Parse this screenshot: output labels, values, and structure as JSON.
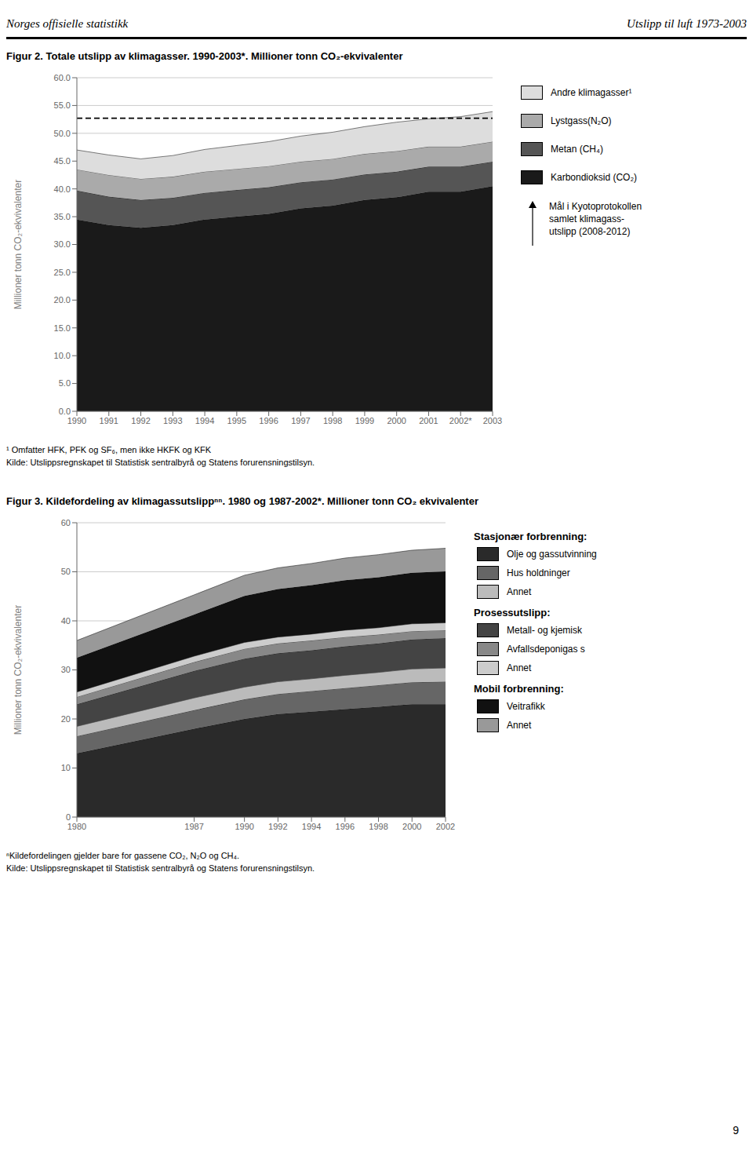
{
  "header": [
    "Norges offisielle statistikk",
    "Utslipp til luft 1973-2003"
  ],
  "page_number": "9",
  "chart_data": [
    {
      "type": "area",
      "stacked": true,
      "title": "Figur 2. Totale utslipp av klimagasser. 1990-2003*. Millioner tonn CO₂-ekvivalenter",
      "y_label": "Millioner tonn CO₂-ekvivalenter",
      "x": [
        1990,
        1991,
        1992,
        1993,
        1994,
        1995,
        1996,
        1997,
        1998,
        1999,
        2000,
        2001,
        2002,
        2003
      ],
      "series": [
        {
          "name": "Karbondioksid (CO₂)",
          "color": "#1a1a1a",
          "values": [
            34.5,
            33.5,
            33.0,
            33.5,
            34.5,
            35.0,
            35.5,
            36.5,
            37.0,
            38.0,
            38.5,
            39.5,
            39.5,
            40.5
          ]
        },
        {
          "name": "Metan (CH₄)",
          "color": "#555555",
          "values": [
            5.2,
            5.1,
            5.0,
            4.9,
            4.8,
            4.8,
            4.8,
            4.7,
            4.7,
            4.6,
            4.6,
            4.5,
            4.5,
            4.4
          ]
        },
        {
          "name": "Lystgass(N₂O)",
          "color": "#aaaaaa",
          "values": [
            3.8,
            3.9,
            3.8,
            3.8,
            3.8,
            3.8,
            3.8,
            3.7,
            3.7,
            3.7,
            3.7,
            3.6,
            3.6,
            3.6
          ]
        },
        {
          "name": "Andre klimagasser¹",
          "color": "#dddddd",
          "values": [
            3.5,
            3.6,
            3.6,
            3.8,
            4.0,
            4.2,
            4.4,
            4.6,
            4.8,
            4.9,
            5.2,
            5.0,
            5.4,
            5.4
          ]
        }
      ],
      "xlim": [
        1990,
        2003
      ],
      "xticks": [
        1990,
        1991,
        1992,
        1993,
        1994,
        1995,
        1996,
        1997,
        1998,
        1999,
        2000,
        2001,
        {
          "value": 2002,
          "label": "2002*"
        },
        2003
      ],
      "ylim": [
        0,
        60
      ],
      "yticks": [
        {
          "value": 0,
          "label": "0.0"
        },
        {
          "value": 5,
          "label": "5.0"
        },
        {
          "value": 10,
          "label": "10.0"
        },
        {
          "value": 15,
          "label": "15.0"
        },
        {
          "value": 20,
          "label": "20.0"
        },
        {
          "value": 25,
          "label": "25.0"
        },
        {
          "value": 30,
          "label": "30.0"
        },
        {
          "value": 35,
          "label": "35.0"
        },
        {
          "value": 40,
          "label": "40.0"
        },
        {
          "value": 45,
          "label": "45.0"
        },
        {
          "value": 50,
          "label": "50.0"
        },
        {
          "value": 55,
          "label": "55.0"
        },
        {
          "value": 60,
          "label": "60.0"
        }
      ],
      "grid": true,
      "legend": "right",
      "reference_lines": [
        {
          "y": 52.7,
          "line_style": "dashed",
          "label": [
            "Mål i Kyotoprotokollen",
            "samlet klimagass-",
            "utslipp (2008-2012)"
          ]
        }
      ],
      "footnotes": [
        "¹ Omfatter HFK, PFK og SF₆, men ikke HKFK og KFK",
        "Kilde: Utslippsregnskapet til Statistisk sentralbyrå og Statens forurensningstilsyn."
      ]
    },
    {
      "type": "area",
      "stacked": true,
      "title": "Figur 3. Kildefordeling av klimagassutslippⁿⁿ. 1980 og 1987-2002*. Millioner tonn CO₂ ekvivalenter",
      "y_label": "Millioner tonn CO₂-ekvivalenter",
      "x": [
        1980,
        1987,
        1990,
        1992,
        1994,
        1996,
        1998,
        2000,
        2002
      ],
      "series": [
        {
          "name": "Olje og gassutvinning",
          "group": "Stasjonær forbrenning:",
          "color": "#2a2a2a",
          "values": [
            13.0,
            18.0,
            20.0,
            21.0,
            21.5,
            22.0,
            22.5,
            23.0,
            23.0
          ]
        },
        {
          "name": "Hus holdninger",
          "group": "Stasjonær forbrenning:",
          "color": "#666666",
          "values": [
            3.5,
            3.8,
            4.0,
            4.1,
            4.2,
            4.3,
            4.4,
            4.5,
            4.6
          ]
        },
        {
          "name": "Annet",
          "group": "Stasjonær forbrenning:",
          "color": "#bbbbbb",
          "values": [
            2.0,
            2.5,
            2.5,
            2.5,
            2.5,
            2.6,
            2.6,
            2.7,
            2.8
          ]
        },
        {
          "name": "Metall- og kjemisk",
          "group": "Prosessutslipp:",
          "color": "#444444",
          "values": [
            4.5,
            5.5,
            5.8,
            5.8,
            5.8,
            5.9,
            5.9,
            6.0,
            6.1
          ]
        },
        {
          "name": "Avfallsdeponigas s",
          "group": "Prosessutslipp:",
          "color": "#888888",
          "values": [
            1.5,
            1.8,
            2.0,
            2.0,
            2.0,
            1.9,
            1.8,
            1.7,
            1.6
          ]
        },
        {
          "name": "Annet",
          "group": "Prosessutslipp:",
          "color": "#cccccc",
          "values": [
            1.0,
            1.2,
            1.3,
            1.3,
            1.3,
            1.4,
            1.4,
            1.5,
            1.5
          ]
        },
        {
          "name": "Veitrafikk",
          "group": "Mobil forbrenning:",
          "color": "#111111",
          "values": [
            7.0,
            8.5,
            9.5,
            9.8,
            10.0,
            10.2,
            10.3,
            10.4,
            10.5
          ]
        },
        {
          "name": "Annet",
          "group": "Mobil forbrenning:",
          "color": "#999999",
          "values": [
            3.5,
            4.0,
            4.2,
            4.3,
            4.4,
            4.5,
            4.6,
            4.6,
            4.7
          ]
        }
      ],
      "xlim": [
        1980,
        2002
      ],
      "xticks": [
        1980,
        1987,
        1990,
        1992,
        1994,
        1996,
        1998,
        2000,
        2002
      ],
      "ylim": [
        0,
        60
      ],
      "yticks": [
        0,
        10,
        20,
        30,
        40,
        50,
        60
      ],
      "grid": true,
      "legend": "right",
      "footnotes": [
        "ⁿKildefordelingen gjelder bare for gassene CO₂, N₂O og CH₄.",
        "Kilde: Utslippsregnskapet til Statistisk sentralbyrå og Statens forurensningstilsyn."
      ]
    }
  ]
}
